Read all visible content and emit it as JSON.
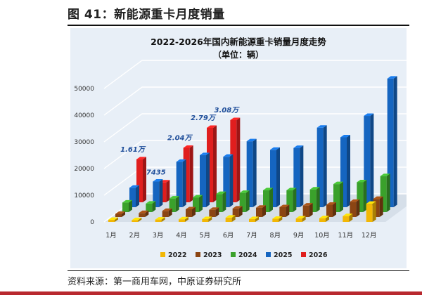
{
  "figure": {
    "title": "图 41：新能源重卡月度销量",
    "source": "资料来源：第一商用车网，中原证券研究所"
  },
  "colors": {
    "2022": "#f2b705",
    "2023": "#8b4513",
    "2024": "#3aa12b",
    "2025": "#1565c0",
    "2026": "#e01e1e",
    "panel_bg": "#e8eff7",
    "annotation": "#1f4e9a",
    "accent_band": "#b8282e"
  },
  "chart_data": {
    "type": "bar",
    "title": "2022-2026年国内新能源重卡销量月度走势",
    "subtitle": "（单位：辆）",
    "categories": [
      "1月",
      "2月",
      "3月",
      "4月",
      "5月",
      "6月",
      "7月",
      "8月",
      "9月",
      "10月",
      "11月",
      "12月"
    ],
    "y_ticks": [
      "0",
      "10000",
      "20000",
      "30000",
      "40000",
      "50000"
    ],
    "ylim": [
      0,
      50000
    ],
    "grid": true,
    "legend_position": "bottom",
    "series": [
      {
        "name": "2022",
        "values": [
          800,
          700,
          900,
          1000,
          1100,
          1600,
          1100,
          1200,
          1300,
          1400,
          2200,
          6800
        ]
      },
      {
        "name": "2023",
        "values": [
          1200,
          1500,
          2300,
          2900,
          2700,
          3200,
          3500,
          3700,
          4300,
          4600,
          5700,
          6800
        ]
      },
      {
        "name": "2024",
        "values": [
          3600,
          3200,
          5100,
          5500,
          6800,
          7200,
          8200,
          8200,
          8500,
          10500,
          11200,
          13500
        ]
      },
      {
        "name": "2025",
        "values": [
          7300,
          9600,
          17000,
          19500,
          18900,
          24700,
          21500,
          22200,
          29800,
          26200,
          34200,
          48200
        ]
      },
      {
        "name": "2026",
        "values": [
          16100,
          7435,
          20400,
          27900,
          30800,
          null,
          null,
          null,
          null,
          null,
          null,
          null
        ]
      }
    ],
    "annotations": [
      {
        "series": "2026",
        "category": "1月",
        "label": "1.61万"
      },
      {
        "series": "2026",
        "category": "2月",
        "label": "7435"
      },
      {
        "series": "2026",
        "category": "3月",
        "label": "2.04万"
      },
      {
        "series": "2026",
        "category": "4月",
        "label": "2.79万"
      },
      {
        "series": "2026",
        "category": "5月",
        "label": "3.08万"
      }
    ]
  }
}
